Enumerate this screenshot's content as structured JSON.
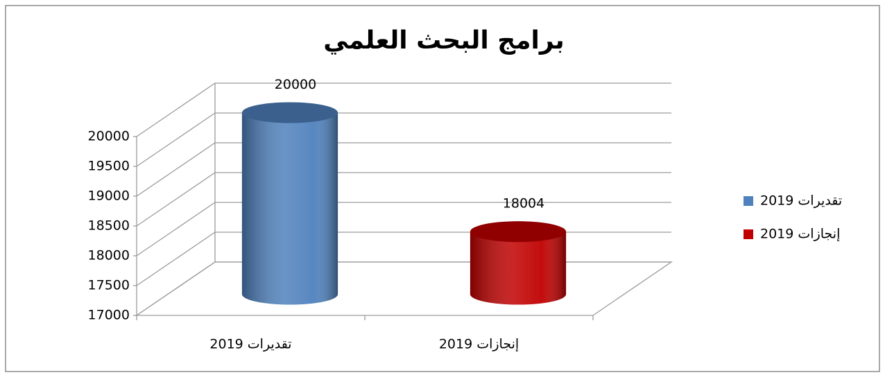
{
  "chart_data": {
    "type": "cylinder",
    "title": "برامج البحث العلمي",
    "categories": [
      "تقديرات 2019",
      "إنجازات 2019"
    ],
    "values": [
      20000,
      18004
    ],
    "colors": [
      "#4f81bd",
      "#c00000"
    ],
    "ylim": [
      17000,
      20000
    ],
    "yticks": [
      17000,
      17500,
      18000,
      18500,
      19000,
      19500,
      20000
    ],
    "grid": true,
    "legend": "right"
  }
}
